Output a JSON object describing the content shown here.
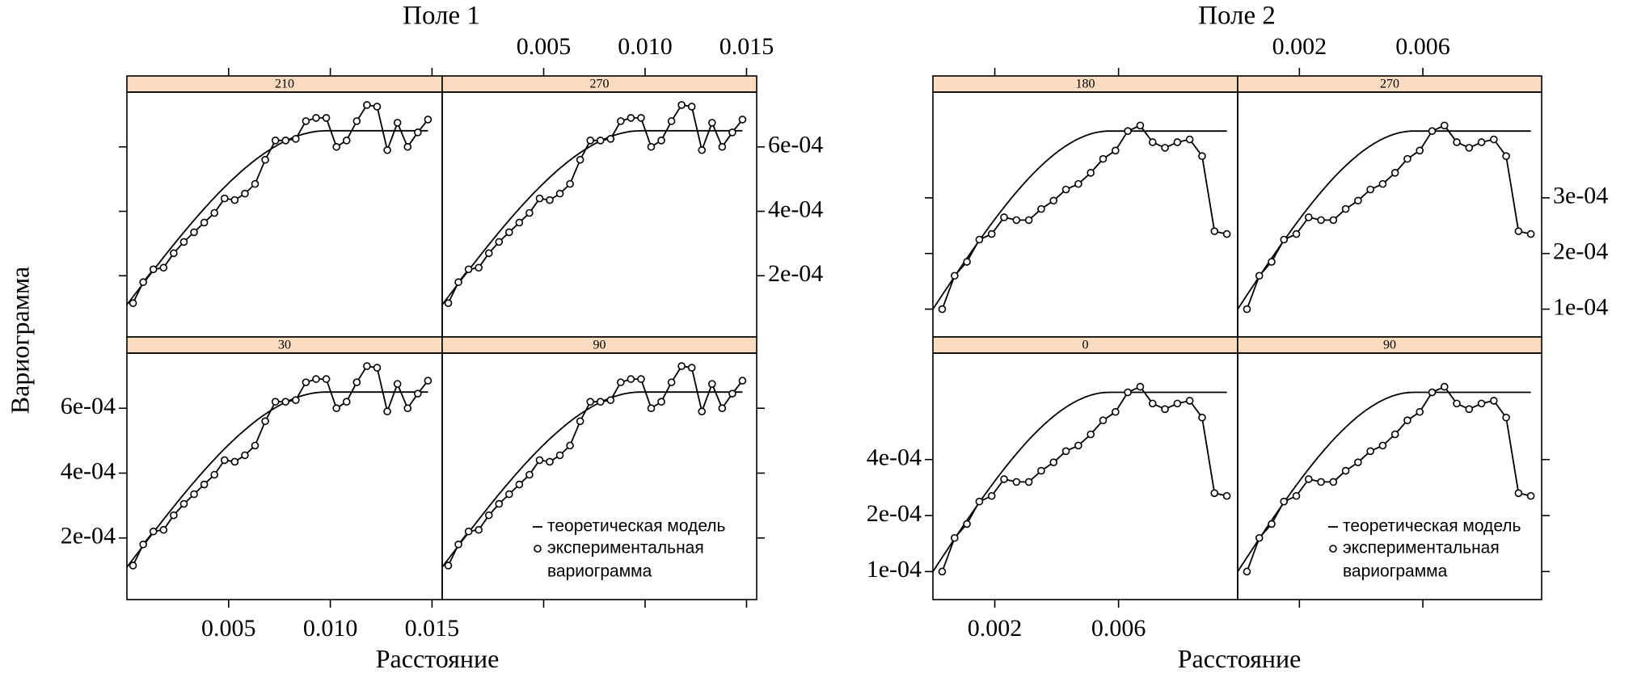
{
  "figure": {
    "ylabel": "Вариограмма",
    "legend": {
      "model": "теоретическая модель",
      "experimental_line1": "экспериментальная",
      "experimental_line2": "вариограмма"
    }
  },
  "chart_data": [
    {
      "type": "line",
      "title": "Поле 1",
      "xlabel": "Расстояние",
      "ylabel": "Вариограмма",
      "xlim": [
        0,
        0.0155
      ],
      "ylim": [
        1e-05,
        0.00077
      ],
      "xticks": [
        0.005,
        0.01,
        0.015
      ],
      "xtick_labels": [
        "0.005",
        "0.010",
        "0.015"
      ],
      "yticks": [
        0.0002,
        0.0004,
        0.0006
      ],
      "ytick_labels": [
        "2e-04",
        "4e-04",
        "6e-04"
      ],
      "grid": false,
      "legend_position": "bottom-right",
      "series": [
        {
          "name": "теоретическая модель"
        },
        {
          "name": "экспериментальная вариограмма"
        }
      ],
      "model": {
        "nugget": 0.00011,
        "sill": 0.00065,
        "range": 0.0098
      },
      "experimental": {
        "x": [
          0.0003,
          0.0008,
          0.0013,
          0.0018,
          0.0023,
          0.0028,
          0.0033,
          0.0038,
          0.0043,
          0.0048,
          0.0053,
          0.0058,
          0.0063,
          0.0068,
          0.0073,
          0.0078,
          0.0083,
          0.0088,
          0.0093,
          0.0098,
          0.0103,
          0.0108,
          0.0113,
          0.0118,
          0.0123,
          0.0128,
          0.0133,
          0.0138,
          0.0143,
          0.0148
        ],
        "y": [
          0.000115,
          0.00018,
          0.00022,
          0.000225,
          0.00027,
          0.000305,
          0.000335,
          0.000365,
          0.000395,
          0.00044,
          0.000435,
          0.000455,
          0.000485,
          0.00056,
          0.00062,
          0.00062,
          0.000625,
          0.00068,
          0.00069,
          0.00069,
          0.0006,
          0.00062,
          0.00068,
          0.00073,
          0.000725,
          0.00059,
          0.000675,
          0.0006,
          0.000645,
          0.000685
        ]
      },
      "panels": [
        {
          "label": "210"
        },
        {
          "label": "270"
        },
        {
          "label": "30"
        },
        {
          "label": "90"
        }
      ]
    },
    {
      "type": "line",
      "title": "Поле 2",
      "xlabel": "Расстояние",
      "ylabel": "Вариограмма",
      "xlim": [
        0,
        0.00985
      ],
      "ylim": [
        5e-05,
        0.00049
      ],
      "xticks": [
        0.002,
        0.006
      ],
      "xtick_labels": [
        "0.002",
        "0.006"
      ],
      "top_yticks": [
        0.0001,
        0.0002,
        0.0003
      ],
      "top_ytick_labels": [
        "1e-04",
        "2e-04",
        "3e-04"
      ],
      "bottom_yticks": [
        0.0001,
        0.0002,
        0.0004
      ],
      "bottom_ytick_labels": [
        "1e-04",
        "2e-04",
        "4e-04"
      ],
      "grid": false,
      "legend_position": "bottom-right",
      "series": [
        {
          "name": "теоретическая модель"
        },
        {
          "name": "экспериментальная вариограмма"
        }
      ],
      "model": {
        "nugget": 0.0001,
        "sill": 0.00042,
        "range": 0.0057
      },
      "experimental": {
        "x": [
          0.0003,
          0.0007,
          0.0011,
          0.0015,
          0.0019,
          0.0023,
          0.0027,
          0.0031,
          0.0035,
          0.0039,
          0.0043,
          0.0047,
          0.0051,
          0.0055,
          0.0059,
          0.0063,
          0.0067,
          0.0071,
          0.0075,
          0.0079,
          0.0083,
          0.0087,
          0.0091,
          0.0095
        ],
        "y": [
          0.0001,
          0.00016,
          0.000185,
          0.000225,
          0.000235,
          0.000265,
          0.00026,
          0.00026,
          0.00028,
          0.000295,
          0.000315,
          0.000325,
          0.000345,
          0.00037,
          0.000385,
          0.00042,
          0.00043,
          0.0004,
          0.00039,
          0.0004,
          0.000405,
          0.000375,
          0.00024,
          0.000235
        ]
      },
      "panels": [
        {
          "label": "180"
        },
        {
          "label": "270"
        },
        {
          "label": "0"
        },
        {
          "label": "90"
        }
      ]
    }
  ]
}
